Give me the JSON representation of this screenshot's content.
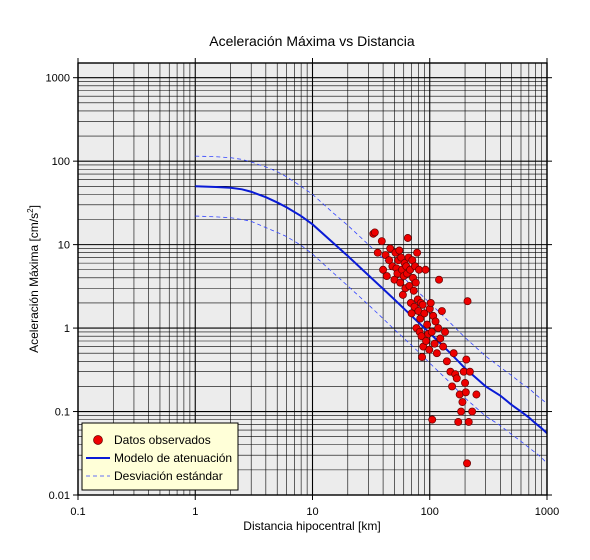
{
  "chart_data": {
    "type": "scatter",
    "title": "Aceleración Máxima vs Distancia",
    "xlabel": "Distancia hipocentral [km]",
    "ylabel": "Aceleración Máxima [cm/s",
    "ylabel_sup": "2",
    "ylabel_end": "]",
    "x_scale": "log",
    "y_scale": "log",
    "xlim": [
      0.1,
      1000
    ],
    "ylim": [
      0.01,
      1500
    ],
    "x_ticks": [
      {
        "value": 0.1,
        "label": "0.1"
      },
      {
        "value": 1,
        "label": "1"
      },
      {
        "value": 10,
        "label": "10"
      },
      {
        "value": 100,
        "label": "100"
      },
      {
        "value": 1000,
        "label": "1000"
      }
    ],
    "y_ticks": [
      {
        "value": 0.01,
        "label": "0.01"
      },
      {
        "value": 0.1,
        "label": "0.1"
      },
      {
        "value": 1,
        "label": "1"
      },
      {
        "value": 10,
        "label": "10"
      },
      {
        "value": 100,
        "label": "100"
      },
      {
        "value": 1000,
        "label": "1000"
      }
    ],
    "grid": true,
    "legend_position": "bottom-left",
    "colors": {
      "plot_background": "#ececec",
      "grid": "#000000",
      "points_fill": "#ee0000",
      "points_stroke": "#660000",
      "model": "#0a1bd6",
      "deviation": "#3344ff",
      "legend_background": "#ffffd8"
    },
    "series": [
      {
        "name": "Datos observados",
        "kind": "points",
        "points": [
          [
            33,
            13.5
          ],
          [
            34,
            14.0
          ],
          [
            36,
            8.0
          ],
          [
            39,
            11.0
          ],
          [
            40,
            5.0
          ],
          [
            42,
            7.5
          ],
          [
            43,
            4.2
          ],
          [
            45,
            6.5
          ],
          [
            46,
            9.0
          ],
          [
            48,
            5.5
          ],
          [
            50,
            3.8
          ],
          [
            51,
            8.0
          ],
          [
            52,
            5.2
          ],
          [
            53,
            4.5
          ],
          [
            54,
            6.5
          ],
          [
            55,
            8.5
          ],
          [
            56,
            3.5
          ],
          [
            57,
            7.0
          ],
          [
            58,
            5.0
          ],
          [
            59,
            2.5
          ],
          [
            60,
            4.2
          ],
          [
            61,
            6.0
          ],
          [
            62,
            3.0
          ],
          [
            63,
            5.5
          ],
          [
            64,
            4.5
          ],
          [
            65,
            12.0
          ],
          [
            66,
            7.0
          ],
          [
            67,
            3.2
          ],
          [
            68,
            5.0
          ],
          [
            69,
            2.0
          ],
          [
            70,
            1.5
          ],
          [
            71,
            6.5
          ],
          [
            72,
            4.0
          ],
          [
            73,
            2.8
          ],
          [
            74,
            1.8
          ],
          [
            75,
            5.5
          ],
          [
            76,
            3.5
          ],
          [
            77,
            1.0
          ],
          [
            78,
            8.0
          ],
          [
            79,
            2.2
          ],
          [
            80,
            1.6
          ],
          [
            81,
            5.0
          ],
          [
            82,
            0.9
          ],
          [
            83,
            1.3
          ],
          [
            84,
            2.0
          ],
          [
            85,
            0.8
          ],
          [
            86,
            0.45
          ],
          [
            87,
            1.9
          ],
          [
            88,
            0.6
          ],
          [
            90,
            1.5
          ],
          [
            92,
            5.0
          ],
          [
            93,
            0.7
          ],
          [
            95,
            1.1
          ],
          [
            97,
            0.85
          ],
          [
            99,
            0.55
          ],
          [
            100,
            1.7
          ],
          [
            102,
            2.0
          ],
          [
            104,
            0.9
          ],
          [
            105,
            0.08
          ],
          [
            107,
            1.4
          ],
          [
            110,
            0.65
          ],
          [
            112,
            1.2
          ],
          [
            115,
            0.5
          ],
          [
            118,
            1.0
          ],
          [
            120,
            3.8
          ],
          [
            123,
            0.75
          ],
          [
            127,
            1.6
          ],
          [
            130,
            0.6
          ],
          [
            135,
            0.9
          ],
          [
            140,
            0.4
          ],
          [
            150,
            0.3
          ],
          [
            155,
            0.2
          ],
          [
            160,
            0.5
          ],
          [
            165,
            0.28
          ],
          [
            170,
            0.25
          ],
          [
            175,
            0.075
          ],
          [
            180,
            0.16
          ],
          [
            185,
            0.1
          ],
          [
            190,
            0.13
          ],
          [
            195,
            0.3
          ],
          [
            200,
            0.22
          ],
          [
            203,
            0.17
          ],
          [
            205,
            0.42
          ],
          [
            208,
            0.024
          ],
          [
            210,
            2.1
          ],
          [
            215,
            0.075
          ],
          [
            220,
            0.3
          ],
          [
            230,
            0.1
          ],
          [
            250,
            0.16
          ]
        ]
      },
      {
        "name": "Modelo de atenuación",
        "kind": "line",
        "points": [
          [
            1,
            50
          ],
          [
            1.5,
            49
          ],
          [
            2,
            48
          ],
          [
            2.5,
            46
          ],
          [
            3,
            43
          ],
          [
            4,
            37
          ],
          [
            5,
            32
          ],
          [
            6,
            28
          ],
          [
            8,
            22
          ],
          [
            10,
            17.5
          ],
          [
            15,
            10.5
          ],
          [
            20,
            7.3
          ],
          [
            30,
            4.3
          ],
          [
            40,
            2.95
          ],
          [
            50,
            2.2
          ],
          [
            60,
            1.72
          ],
          [
            80,
            1.17
          ],
          [
            100,
            0.87
          ],
          [
            150,
            0.5
          ],
          [
            200,
            0.33
          ],
          [
            300,
            0.2
          ],
          [
            400,
            0.155
          ],
          [
            500,
            0.12
          ],
          [
            600,
            0.1
          ],
          [
            700,
            0.085
          ],
          [
            800,
            0.072
          ],
          [
            900,
            0.063
          ],
          [
            1000,
            0.055
          ]
        ]
      },
      {
        "name": "Desviación estándar",
        "kind": "dashed-band",
        "upper": [
          [
            1,
            115
          ],
          [
            1.5,
            113
          ],
          [
            2,
            110
          ],
          [
            2.5,
            105
          ],
          [
            3,
            98
          ],
          [
            4,
            85
          ],
          [
            5,
            75
          ],
          [
            6,
            65
          ],
          [
            8,
            50
          ],
          [
            10,
            40
          ],
          [
            15,
            24
          ],
          [
            20,
            17
          ],
          [
            30,
            10
          ],
          [
            40,
            6.8
          ],
          [
            50,
            5.1
          ],
          [
            60,
            4.0
          ],
          [
            80,
            2.7
          ],
          [
            100,
            2.0
          ],
          [
            150,
            1.15
          ],
          [
            200,
            0.77
          ],
          [
            300,
            0.46
          ],
          [
            400,
            0.34
          ],
          [
            500,
            0.27
          ],
          [
            600,
            0.22
          ],
          [
            700,
            0.19
          ],
          [
            800,
            0.16
          ],
          [
            900,
            0.14
          ],
          [
            1000,
            0.125
          ]
        ],
        "lower": [
          [
            1,
            22
          ],
          [
            1.5,
            21.5
          ],
          [
            2,
            21
          ],
          [
            2.5,
            20
          ],
          [
            3,
            19
          ],
          [
            4,
            16
          ],
          [
            5,
            14
          ],
          [
            6,
            12.5
          ],
          [
            8,
            9.8
          ],
          [
            10,
            7.7
          ],
          [
            15,
            4.6
          ],
          [
            20,
            3.2
          ],
          [
            30,
            1.9
          ],
          [
            40,
            1.3
          ],
          [
            50,
            0.96
          ],
          [
            60,
            0.76
          ],
          [
            80,
            0.52
          ],
          [
            100,
            0.38
          ],
          [
            150,
            0.22
          ],
          [
            200,
            0.145
          ],
          [
            300,
            0.088
          ],
          [
            400,
            0.068
          ],
          [
            500,
            0.053
          ],
          [
            600,
            0.044
          ],
          [
            700,
            0.037
          ],
          [
            800,
            0.032
          ],
          [
            900,
            0.028
          ],
          [
            1000,
            0.024
          ]
        ]
      }
    ]
  }
}
